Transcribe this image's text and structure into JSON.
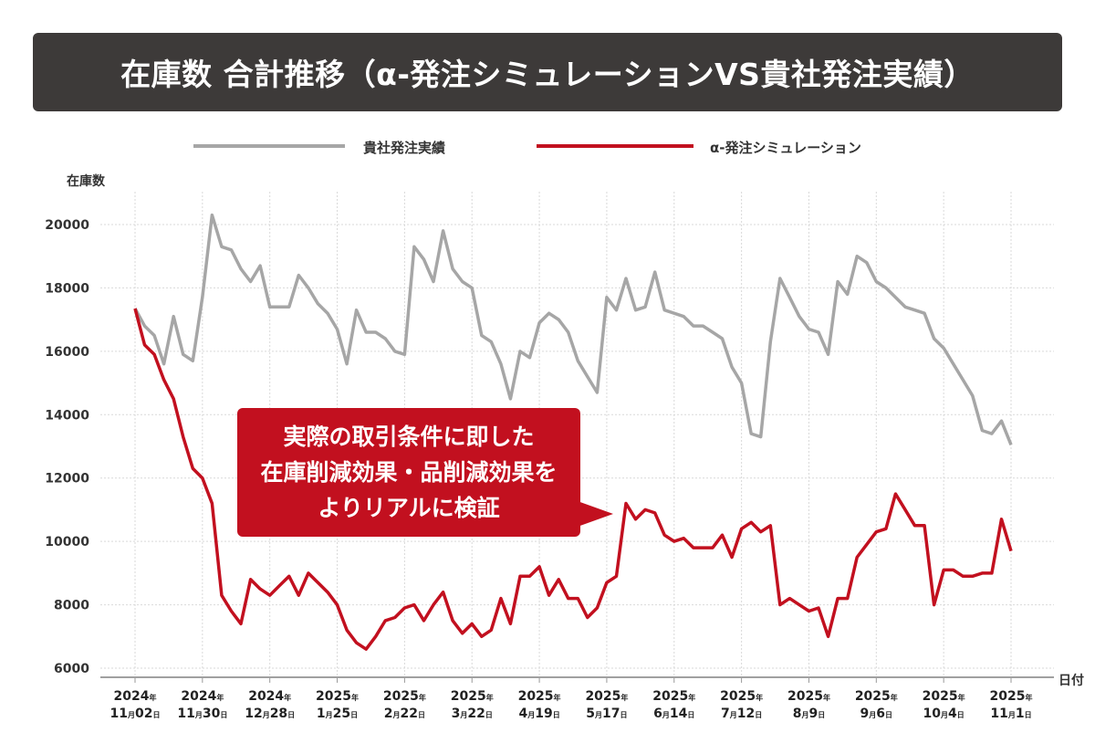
{
  "title": "在庫数 合計推移（α-発注シミュレーションVS貴社発注実績）",
  "callout": [
    "実際の取引条件に即した",
    "在庫削減効果・品削減効果を",
    "よりリアルに検証"
  ],
  "colors": {
    "actual": "#a6a6a6",
    "simulation": "#c2101f",
    "title_bg": "#3d3a39"
  },
  "chart_data": {
    "type": "line",
    "ylabel": "在庫数",
    "xlabel": "日付",
    "ylim": [
      6000,
      20000
    ],
    "yticks": [
      6000,
      8000,
      10000,
      12000,
      14000,
      16000,
      18000,
      20000
    ],
    "grid": true,
    "legend_position": "top",
    "xticks": [
      {
        "date": "2024-11-02",
        "year": "2024",
        "month": "11",
        "day": "02"
      },
      {
        "date": "2024-11-30",
        "year": "2024",
        "month": "11",
        "day": "30"
      },
      {
        "date": "2024-12-28",
        "year": "2024",
        "month": "12",
        "day": "28"
      },
      {
        "date": "2025-01-25",
        "year": "2025",
        "month": "1",
        "day": "25"
      },
      {
        "date": "2025-02-22",
        "year": "2025",
        "month": "2",
        "day": "22"
      },
      {
        "date": "2025-03-22",
        "year": "2025",
        "month": "3",
        "day": "22"
      },
      {
        "date": "2025-04-19",
        "year": "2025",
        "month": "4",
        "day": "19"
      },
      {
        "date": "2025-05-17",
        "year": "2025",
        "month": "5",
        "day": "17"
      },
      {
        "date": "2025-06-14",
        "year": "2025",
        "month": "6",
        "day": "14"
      },
      {
        "date": "2025-07-12",
        "year": "2025",
        "month": "7",
        "day": "12"
      },
      {
        "date": "2025-08-09",
        "year": "2025",
        "month": "8",
        "day": "9"
      },
      {
        "date": "2025-09-06",
        "year": "2025",
        "month": "9",
        "day": "6"
      },
      {
        "date": "2025-10-04",
        "year": "2025",
        "month": "10",
        "day": "4"
      },
      {
        "date": "2025-11-01",
        "year": "2025",
        "month": "11",
        "day": "1"
      }
    ],
    "x": [
      "2024-11-02",
      "2024-11-06",
      "2024-11-10",
      "2024-11-14",
      "2024-11-18",
      "2024-11-22",
      "2024-11-26",
      "2024-11-30",
      "2024-12-04",
      "2024-12-08",
      "2024-12-12",
      "2024-12-16",
      "2024-12-20",
      "2024-12-24",
      "2024-12-28",
      "2025-01-01",
      "2025-01-05",
      "2025-01-09",
      "2025-01-13",
      "2025-01-17",
      "2025-01-21",
      "2025-01-25",
      "2025-01-29",
      "2025-02-02",
      "2025-02-06",
      "2025-02-10",
      "2025-02-14",
      "2025-02-18",
      "2025-02-22",
      "2025-02-26",
      "2025-03-02",
      "2025-03-06",
      "2025-03-10",
      "2025-03-14",
      "2025-03-18",
      "2025-03-22",
      "2025-03-26",
      "2025-03-30",
      "2025-04-03",
      "2025-04-07",
      "2025-04-11",
      "2025-04-15",
      "2025-04-19",
      "2025-04-23",
      "2025-04-27",
      "2025-05-01",
      "2025-05-05",
      "2025-05-09",
      "2025-05-13",
      "2025-05-17",
      "2025-05-21",
      "2025-05-25",
      "2025-05-29",
      "2025-06-02",
      "2025-06-06",
      "2025-06-10",
      "2025-06-14",
      "2025-06-18",
      "2025-06-22",
      "2025-06-26",
      "2025-06-30",
      "2025-07-04",
      "2025-07-08",
      "2025-07-12",
      "2025-07-16",
      "2025-07-20",
      "2025-07-24",
      "2025-07-28",
      "2025-08-01",
      "2025-08-05",
      "2025-08-09",
      "2025-08-13",
      "2025-08-17",
      "2025-08-21",
      "2025-08-25",
      "2025-08-29",
      "2025-09-02",
      "2025-09-06",
      "2025-09-10",
      "2025-09-14",
      "2025-09-18",
      "2025-09-22",
      "2025-09-26",
      "2025-09-30",
      "2025-10-04",
      "2025-10-08",
      "2025-10-12",
      "2025-10-16",
      "2025-10-20",
      "2025-10-24",
      "2025-10-28",
      "2025-11-01"
    ],
    "series": [
      {
        "name": "貴社発注実績",
        "color": "#a6a6a6",
        "values": [
          17350,
          16800,
          16500,
          15600,
          17100,
          15900,
          15700,
          17700,
          20300,
          19300,
          19200,
          18600,
          18200,
          18700,
          17400,
          17400,
          17400,
          18400,
          18000,
          17500,
          17200,
          16700,
          15600,
          17300,
          16600,
          16600,
          16400,
          16000,
          15900,
          19300,
          18900,
          18200,
          19800,
          18600,
          18200,
          18000,
          16500,
          16300,
          15600,
          14500,
          16000,
          15800,
          16900,
          17200,
          17000,
          16600,
          15700,
          15200,
          14700,
          17700,
          17300,
          18300,
          17300,
          17400,
          18500,
          17300,
          17200,
          17100,
          16800,
          16800,
          16600,
          16400,
          15500,
          15000,
          13400,
          13300,
          16300,
          18300,
          17700,
          17100,
          16700,
          16600,
          15900,
          18200,
          17800,
          19000,
          18800,
          18200,
          18000,
          17700,
          17400,
          17300,
          17200,
          16400,
          16100,
          15600,
          15100,
          14600,
          13500,
          13400,
          13800,
          13050
        ]
      },
      {
        "name": "α-発注シミュレーション",
        "color": "#c2101f",
        "values": [
          17350,
          16200,
          15900,
          15100,
          14500,
          13300,
          12300,
          12000,
          11200,
          8300,
          7800,
          7400,
          8800,
          8500,
          8300,
          8600,
          8900,
          8300,
          9000,
          8700,
          8400,
          8000,
          7200,
          6800,
          6600,
          7000,
          7500,
          7600,
          7900,
          8000,
          7500,
          8000,
          8400,
          7500,
          7100,
          7400,
          7000,
          7200,
          8200,
          7400,
          8900,
          8900,
          9200,
          8300,
          8800,
          8200,
          8200,
          7600,
          7900,
          8700,
          8900,
          11200,
          10700,
          11000,
          10900,
          10200,
          10000,
          10100,
          9800,
          9800,
          9800,
          10200,
          9500,
          10400,
          10600,
          10300,
          10500,
          8000,
          8200,
          8000,
          7800,
          7900,
          7000,
          8200,
          8200,
          9500,
          9900,
          10300,
          10400,
          11500,
          11000,
          10500,
          10500,
          8000,
          9100,
          9100,
          8900,
          8900,
          9000,
          9000,
          10700,
          9700
        ]
      }
    ]
  }
}
